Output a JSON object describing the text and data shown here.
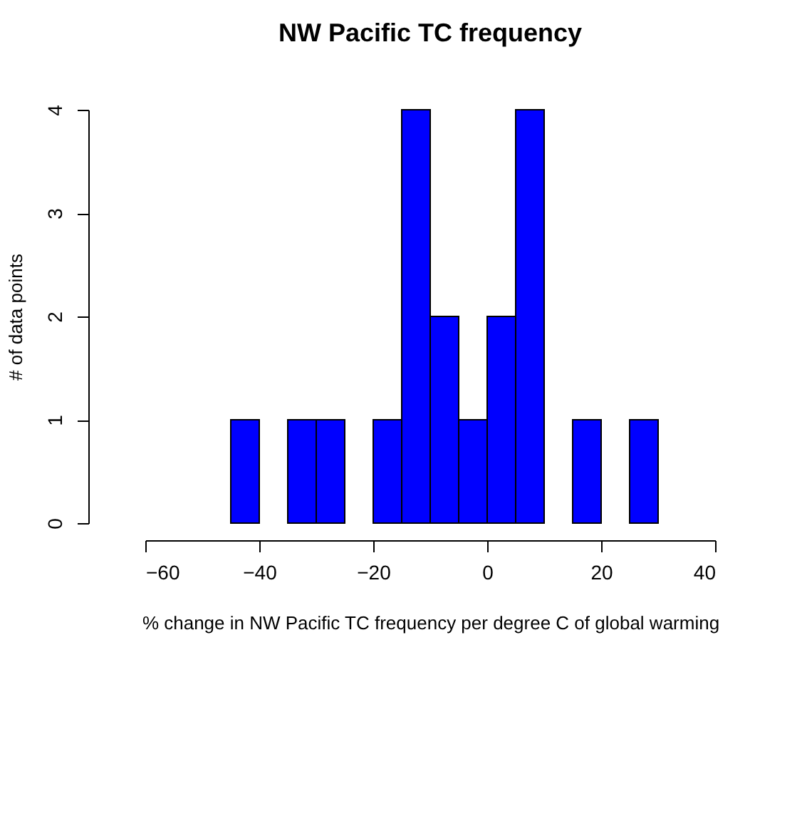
{
  "chart_data": {
    "type": "histogram",
    "title": "NW Pacific TC frequency",
    "xlabel": "% change in NW Pacific TC frequency per degree C of global warming",
    "ylabel": "# of data points",
    "bins": [
      -45,
      -40,
      -35,
      -30,
      -25,
      -20,
      -15,
      -10,
      -5,
      0,
      5,
      10,
      15,
      20,
      25,
      30
    ],
    "values": [
      1,
      0,
      1,
      1,
      0,
      1,
      4,
      2,
      1,
      2,
      4,
      0,
      1,
      0,
      1
    ],
    "color": "#0000ff",
    "xlim": [
      -60,
      40
    ],
    "xticks": [
      -60,
      -40,
      -20,
      0,
      20,
      40
    ],
    "ylim": [
      0,
      4
    ],
    "yticks": [
      0,
      1,
      2,
      3,
      4
    ],
    "grid": false
  }
}
